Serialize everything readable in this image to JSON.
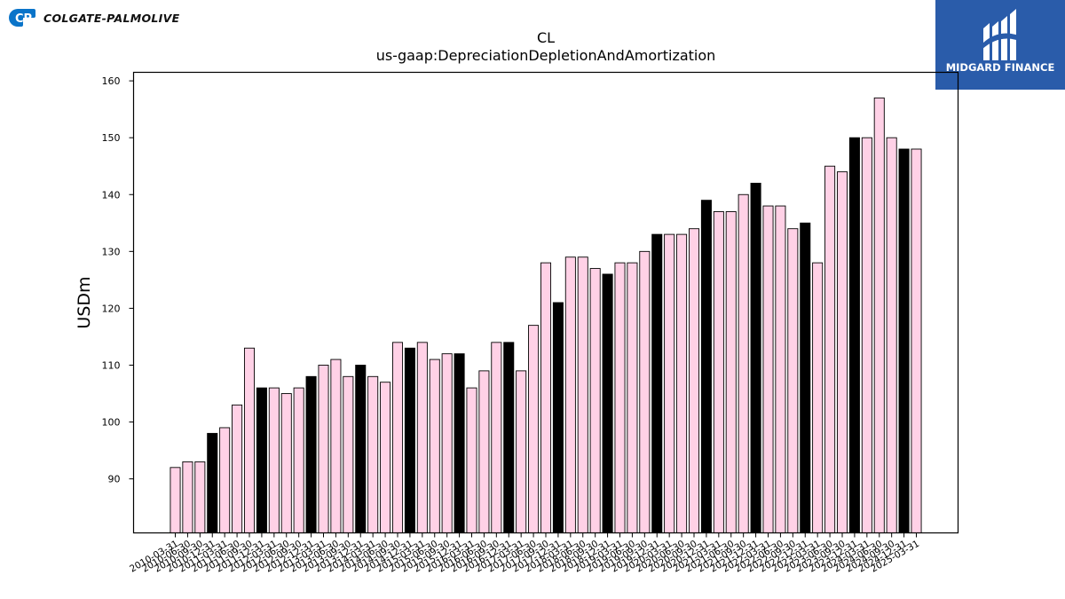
{
  "brand": {
    "company_name": "COLGATE-PALMOLIVE",
    "company_color": "#0a74c9",
    "finance_name": "MIDGARD FINANCE",
    "finance_color": "#2a5caa"
  },
  "chart_data": {
    "type": "bar",
    "title": "CL",
    "subtitle": "us-gaap:DepreciationDepletionAndAmortization",
    "xlabel": "",
    "ylabel": "USDm",
    "ylim": [
      80.5,
      161.5
    ],
    "yticks": [
      90,
      100,
      110,
      120,
      130,
      140,
      150,
      160
    ],
    "grid": false,
    "colors": {
      "quarter": "#ffd1e6",
      "fiscal_year_end": "#000000",
      "edge": "#000000"
    },
    "categories": [
      "2010-03-31",
      "2010-06-30",
      "2010-09-30",
      "2010-12-31",
      "2011-03-31",
      "2011-06-30",
      "2011-09-30",
      "2011-12-31",
      "2012-03-31",
      "2012-06-30",
      "2012-09-30",
      "2012-12-31",
      "2013-03-31",
      "2013-06-30",
      "2013-09-30",
      "2013-12-31",
      "2014-03-31",
      "2014-06-30",
      "2014-09-30",
      "2014-12-31",
      "2015-03-31",
      "2015-06-30",
      "2015-09-30",
      "2015-12-31",
      "2016-03-31",
      "2016-06-30",
      "2016-09-30",
      "2016-12-31",
      "2017-03-31",
      "2017-06-30",
      "2017-09-30",
      "2017-12-31",
      "2018-03-31",
      "2018-06-30",
      "2018-09-30",
      "2018-12-31",
      "2019-03-31",
      "2019-06-30",
      "2019-09-30",
      "2019-12-31",
      "2020-03-31",
      "2020-06-30",
      "2020-09-30",
      "2020-12-31",
      "2021-03-31",
      "2021-06-30",
      "2021-09-30",
      "2021-12-31",
      "2022-03-31",
      "2022-06-30",
      "2022-09-30",
      "2022-12-31",
      "2023-03-31",
      "2023-06-30",
      "2023-09-30",
      "2023-12-31",
      "2024-03-31",
      "2024-06-30",
      "2024-09-30",
      "2024-12-31",
      "2025-03-31"
    ],
    "values": [
      92,
      93,
      93,
      98,
      99,
      103,
      113,
      106,
      106,
      105,
      106,
      108,
      110,
      111,
      108,
      110,
      108,
      107,
      114,
      113,
      114,
      111,
      112,
      112,
      106,
      109,
      114,
      114,
      109,
      117,
      128,
      121,
      129,
      129,
      127,
      126,
      128,
      128,
      130,
      133,
      133,
      133,
      134,
      139,
      137,
      137,
      140,
      142,
      138,
      138,
      134,
      135,
      128,
      145,
      144,
      150,
      150,
      157,
      150,
      148,
      148
    ],
    "fiscal_year_end_flags": [
      0,
      0,
      0,
      1,
      0,
      0,
      0,
      1,
      0,
      0,
      0,
      1,
      0,
      0,
      0,
      1,
      0,
      0,
      0,
      1,
      0,
      0,
      0,
      1,
      0,
      0,
      0,
      1,
      0,
      0,
      0,
      1,
      0,
      0,
      0,
      1,
      0,
      0,
      0,
      1,
      0,
      0,
      0,
      1,
      0,
      0,
      0,
      1,
      0,
      0,
      0,
      1,
      0,
      0,
      0,
      1,
      0,
      0,
      0,
      1,
      0
    ]
  }
}
